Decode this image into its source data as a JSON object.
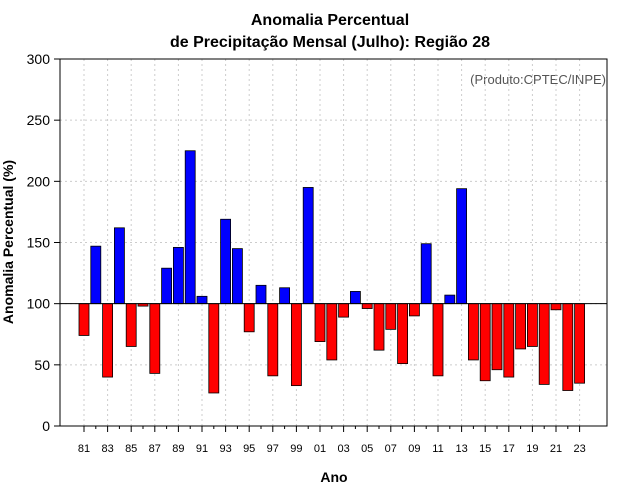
{
  "chart_data": {
    "type": "bar",
    "title_line1": "Anomalia Percentual",
    "title_line2": "de Precipitação Mensal (Julho): Região 28",
    "xlabel": "Ano",
    "ylabel": "Anomalia Percentual (%)",
    "credit": "(Produto:CPTEC/INPE)",
    "baseline": 100,
    "ylim": [
      0,
      300
    ],
    "yticks": [
      0,
      50,
      100,
      150,
      200,
      250,
      300
    ],
    "years": [
      "81",
      "82",
      "83",
      "84",
      "85",
      "86",
      "87",
      "88",
      "89",
      "90",
      "91",
      "92",
      "93",
      "94",
      "95",
      "96",
      "97",
      "98",
      "99",
      "00",
      "01",
      "02",
      "03",
      "04",
      "05",
      "06",
      "07",
      "08",
      "09",
      "10",
      "11",
      "12",
      "13",
      "14",
      "15",
      "16",
      "17",
      "18",
      "19",
      "20",
      "21",
      "22",
      "23"
    ],
    "xtick_labels": [
      "81",
      "83",
      "85",
      "87",
      "89",
      "91",
      "93",
      "95",
      "97",
      "99",
      "01",
      "03",
      "05",
      "07",
      "09",
      "11",
      "13",
      "15",
      "17",
      "19",
      "21",
      "23"
    ],
    "values": [
      74,
      147,
      40,
      162,
      65,
      98,
      43,
      129,
      146,
      225,
      106,
      27,
      169,
      145,
      77,
      115,
      41,
      113,
      33,
      195,
      69,
      54,
      89,
      110,
      96,
      62,
      79,
      51,
      90,
      149,
      41,
      107,
      194,
      54,
      37,
      46,
      40,
      63,
      65,
      34,
      95,
      29,
      35
    ],
    "colors": {
      "positive": "#0000ff",
      "negative": "#ff0000",
      "grid": "#cccccc"
    }
  }
}
